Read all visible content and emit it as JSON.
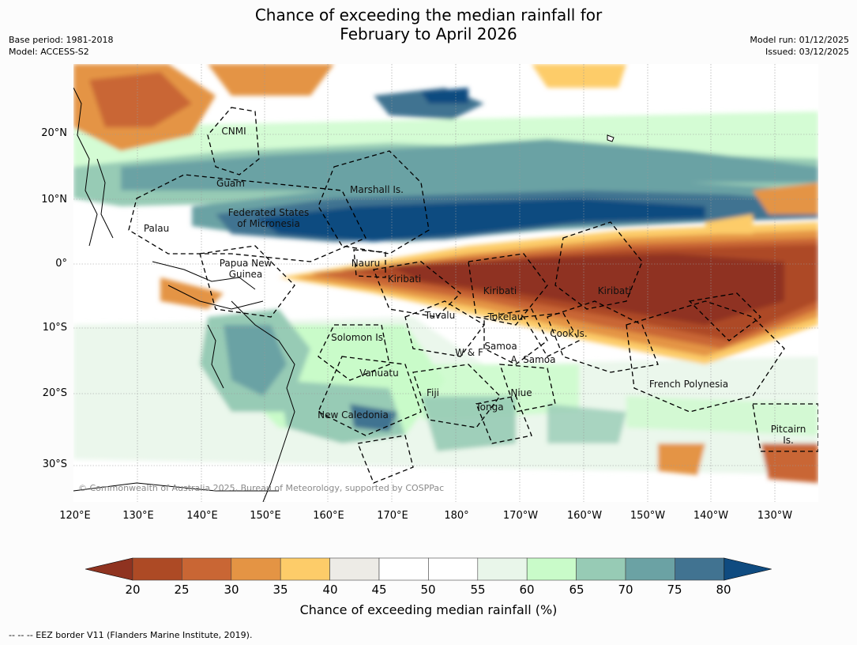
{
  "title": {
    "line1": "Chance of exceeding the median rainfall for",
    "line2": "February to April 2026"
  },
  "meta": {
    "base_period": "Base period: 1981-2018",
    "model": "Model: ACCESS-S2",
    "model_run": "Model run: 01/12/2025",
    "issued": "Issued: 03/12/2025"
  },
  "map": {
    "copyright": "© Commonwealth of Australia 2025, Bureau of Meteorology, supported by COSPPac",
    "lat_labels": [
      "20°N",
      "10°N",
      "0°",
      "10°S",
      "20°S",
      "30°S"
    ],
    "lon_labels": [
      "120°E",
      "130°E",
      "140°E",
      "150°E",
      "160°E",
      "170°E",
      "180°",
      "170°W",
      "160°W",
      "150°W",
      "140°W",
      "130°W"
    ],
    "regions": {
      "cnmi": "CNMI",
      "guam": "Guam",
      "marshall": "Marshall Is.",
      "fsm1": "Federated States",
      "fsm2": "of Micronesia",
      "palau": "Palau",
      "png1": "Papua New",
      "png2": "Guinea",
      "nauru": "Nauru",
      "kiribati_w": "Kiribati",
      "kiribati_c": "Kiribati",
      "kiribati_e": "Kiribati",
      "tuvalu": "Tuvalu",
      "tokelau": "Tokelau",
      "cook": "Cook Is.",
      "solomon": "Solomon Is.",
      "wf": "W & F",
      "samoa": "Samoa",
      "asamoa": "A. Samoa",
      "vanuatu": "Vanuatu",
      "fiji": "Fiji",
      "niue": "Niue",
      "tonga": "Tonga",
      "newcal": "New Caledonia",
      "frpoly": "French Polynesia",
      "pitcairn1": "Pitcairn",
      "pitcairn2": "Is."
    }
  },
  "colorbar": {
    "label": "Chance of exceeding median rainfall (%)",
    "ticks": [
      "20",
      "25",
      "30",
      "35",
      "40",
      "45",
      "50",
      "55",
      "60",
      "65",
      "70",
      "75",
      "80"
    ],
    "colors": [
      "#8f3320",
      "#ad4a25",
      "#c96634",
      "#e49444",
      "#fdcc69",
      "#edebe6",
      "#ffffff",
      "#ffffff",
      "#e9f6ea",
      "#c9fbc9",
      "#97cbb5",
      "#6ba2a4",
      "#417391",
      "#0f4b80"
    ]
  },
  "footer": "--  --  -- EEZ border V11 (Flanders Marine Institute, 2019)."
}
